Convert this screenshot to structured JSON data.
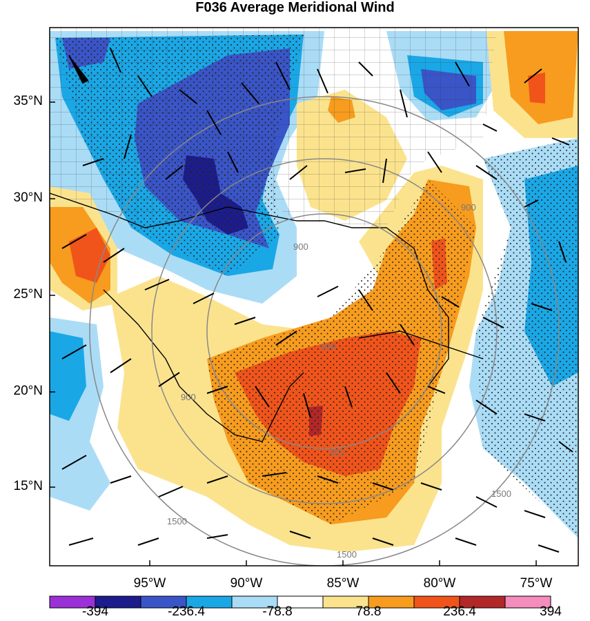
{
  "title": "F036 Average Meridional Wind",
  "lat_labels": [
    "35°N",
    "30°N",
    "25°N",
    "20°N",
    "15°N"
  ],
  "lon_labels": [
    "95°W",
    "90°W",
    "85°W",
    "80°W",
    "75°W"
  ],
  "colorbar": {
    "colors": [
      "#9b30d8",
      "#1c1c8c",
      "#3a55c8",
      "#1aa7e6",
      "#aadcf6",
      "#ffffff",
      "#fbe38e",
      "#f79c1e",
      "#f0541b",
      "#b22727",
      "#f48cbc"
    ],
    "labels": [
      "-394",
      "-236.4",
      "-78.8",
      "78.8",
      "236.4",
      "394"
    ]
  },
  "contour_labels": [
    "900",
    "900",
    "900",
    "900",
    "900",
    "1500",
    "1500",
    "1500"
  ],
  "icons": {
    "wind-barbs": "wind-barb-icon",
    "stipple": "significance-dots"
  }
}
